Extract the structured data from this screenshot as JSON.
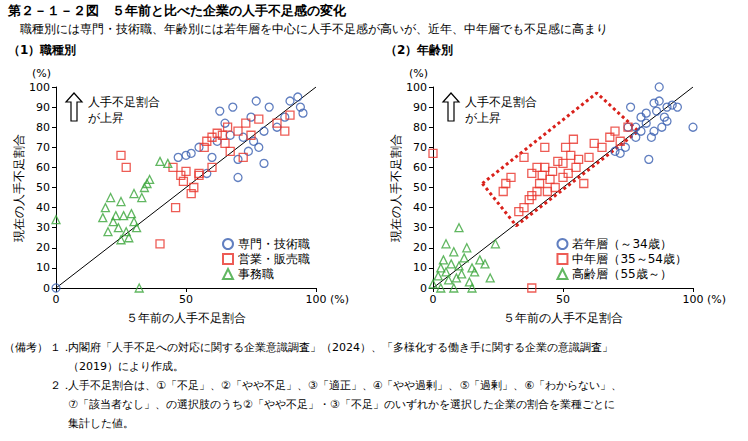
{
  "title": "第２－１－２図　５年前と比べた企業の人手不足感の変化",
  "subtitle": "職種別には専門・技術職、年齢別には若年層を中心に人手不足感が高いが、近年、中年層でも不足感に高まり",
  "chart_data": [
    {
      "type": "scatter",
      "title": "（1）職種別",
      "xlabel": "５年前の人手不足割合",
      "ylabel": "現在の人手不足割合",
      "xunit": "(%)",
      "yunit": "(%)",
      "annotation": "人手不足割合\nが上昇",
      "xlim": [
        0,
        100
      ],
      "ylim": [
        0,
        100
      ],
      "xticks": [
        0,
        50,
        100
      ],
      "yticks": [
        0,
        10,
        20,
        30,
        40,
        50,
        60,
        70,
        80,
        90,
        100
      ],
      "grid": false,
      "legend": "lower right",
      "reference_line": {
        "x": [
          0,
          100
        ],
        "y": [
          0,
          100
        ],
        "color": "#000000"
      },
      "series": [
        {
          "name": "専門・技術職",
          "color": "#3a5fb0",
          "marker": "circle",
          "x": [
            0,
            47,
            50,
            52,
            55,
            58,
            60,
            62,
            63,
            65,
            67,
            68,
            70,
            70,
            72,
            74,
            75,
            76,
            77,
            78,
            80,
            80,
            82,
            85,
            88,
            90,
            93,
            94,
            95
          ],
          "y": [
            0,
            65,
            66,
            67,
            70,
            57,
            65,
            73,
            88,
            82,
            76,
            90,
            55,
            64,
            75,
            68,
            85,
            73,
            93,
            70,
            78,
            62,
            90,
            80,
            85,
            93,
            95,
            90,
            87
          ]
        },
        {
          "name": "営業・販売職",
          "color": "#e8332a",
          "marker": "square",
          "x": [
            25,
            27,
            40,
            45,
            46,
            48,
            49,
            50,
            52,
            53,
            55,
            55,
            57,
            58,
            60,
            60,
            62,
            64,
            65,
            66,
            67,
            70,
            72,
            73,
            75,
            78,
            85,
            88,
            90
          ],
          "y": [
            66,
            60,
            22,
            60,
            40,
            56,
            53,
            58,
            47,
            50,
            57,
            56,
            70,
            73,
            60,
            75,
            77,
            76,
            72,
            80,
            68,
            78,
            65,
            82,
            76,
            84,
            82,
            78,
            86
          ]
        },
        {
          "name": "事務職",
          "color": "#3aa53a",
          "marker": "triangle",
          "x": [
            0,
            18,
            19,
            20,
            21,
            22,
            23,
            24,
            25,
            25,
            26,
            27,
            28,
            29,
            30,
            30,
            31,
            32,
            33,
            34,
            35,
            36,
            40,
            43
          ],
          "y": [
            34,
            35,
            40,
            28,
            45,
            33,
            36,
            30,
            24,
            43,
            36,
            28,
            25,
            37,
            33,
            47,
            30,
            0,
            45,
            50,
            52,
            54,
            63,
            62
          ]
        }
      ]
    },
    {
      "type": "scatter",
      "title": "（2）年齢別",
      "xlabel": "５年前の人手不足割合",
      "ylabel": "現在の人手不足割合",
      "xunit": "(%)",
      "yunit": "(%)",
      "annotation": "人手不足割合\nが上昇",
      "xlim": [
        0,
        100
      ],
      "ylim": [
        0,
        100
      ],
      "xticks": [
        0,
        50,
        100
      ],
      "yticks": [
        0,
        10,
        20,
        30,
        40,
        50,
        60,
        70,
        80,
        90,
        100
      ],
      "grid": false,
      "legend": "lower right",
      "reference_line": {
        "x": [
          0,
          100
        ],
        "y": [
          0,
          100
        ],
        "color": "#000000"
      },
      "highlight_box": {
        "x": [
          19,
          63,
          79,
          32
        ],
        "y": [
          52,
          97,
          78,
          31
        ],
        "color": "#d9211b",
        "line_style": "dotted"
      },
      "series": [
        {
          "name": "若年層（～34歳）",
          "color": "#3a5fb0",
          "marker": "circle",
          "x": [
            70,
            72,
            74,
            75,
            76,
            78,
            78,
            80,
            80,
            82,
            82,
            83,
            84,
            85,
            85,
            86,
            87,
            87,
            88,
            89,
            90,
            90,
            92,
            94,
            100
          ],
          "y": [
            68,
            67,
            70,
            80,
            90,
            75,
            80,
            85,
            78,
            82,
            87,
            64,
            75,
            92,
            78,
            88,
            93,
            100,
            80,
            85,
            90,
            83,
            91,
            90,
            80
          ]
        },
        {
          "name": "中年層（35～54歳）",
          "color": "#e8332a",
          "marker": "square",
          "x": [
            0,
            38,
            27,
            28,
            30,
            33,
            35,
            35,
            37,
            38,
            38,
            40,
            40,
            41,
            42,
            43,
            43,
            44,
            45,
            46,
            47,
            48,
            50,
            50,
            51,
            52,
            53,
            54,
            55,
            56,
            58,
            60,
            62,
            65,
            68,
            70,
            72,
            75
          ],
          "y": [
            67,
            0,
            48,
            52,
            55,
            38,
            40,
            65,
            44,
            46,
            57,
            48,
            60,
            52,
            56,
            60,
            70,
            48,
            54,
            58,
            50,
            63,
            55,
            62,
            70,
            57,
            66,
            74,
            60,
            64,
            52,
            65,
            72,
            70,
            75,
            78,
            73,
            80
          ]
        },
        {
          "name": "高齢層（55歳～）",
          "color": "#3aa53a",
          "marker": "triangle",
          "x": [
            0,
            2,
            3,
            4,
            5,
            5,
            6,
            7,
            8,
            9,
            10,
            10,
            11,
            12,
            13,
            14,
            15,
            16,
            18,
            20,
            22,
            24,
            3,
            8,
            15
          ],
          "y": [
            2,
            6,
            10,
            14,
            8,
            22,
            4,
            12,
            18,
            5,
            11,
            30,
            7,
            15,
            20,
            3,
            10,
            8,
            14,
            12,
            5,
            22,
            0,
            0,
            0
          ]
        }
      ]
    }
  ],
  "notes": {
    "label": "（備考）",
    "items": [
      {
        "num": "１．",
        "lines": [
          "内閣府「人手不足への対応に関する企業意識調査」（2024）、「多様化する働き手に関する企業の意識調査」",
          "（2019）により作成。"
        ]
      },
      {
        "num": "２．",
        "lines": [
          "人手不足割合は、①「不足」、②「やや不足」、③「適正」、④「やや過剰」、⑤「過剰」、⑥「わからない」、",
          "⑦「該当者なし」、の選択肢のうち②「やや不足」・③「不足」のいずれかを選択した企業の割合を業種ごとに",
          "集計した値。"
        ]
      }
    ]
  }
}
